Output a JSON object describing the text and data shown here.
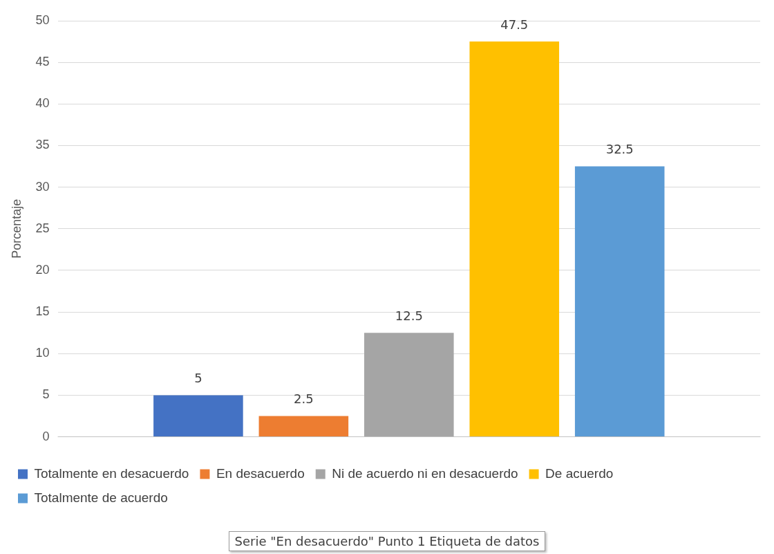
{
  "chart_data": {
    "type": "bar",
    "ylabel": "Porcentaje",
    "categories": [
      null
    ],
    "series": [
      {
        "name": "Totalmente en desacuerdo",
        "color": "#4472c4",
        "values": [
          5
        ]
      },
      {
        "name": "En desacuerdo",
        "color": "#ed7d31",
        "values": [
          2.5
        ]
      },
      {
        "name": "Ni de acuerdo ni en desacuerdo",
        "color": "#a5a5a5",
        "values": [
          12.5
        ]
      },
      {
        "name": "De acuerdo",
        "color": "#ffc000",
        "values": [
          47.5
        ]
      },
      {
        "name": "Totalmente de acuerdo",
        "color": "#5b9bd5",
        "values": [
          32.5
        ]
      }
    ],
    "ylim": [
      0,
      50
    ],
    "yticks": [
      0,
      5,
      10,
      15,
      20,
      25,
      30,
      35,
      40,
      45,
      50
    ],
    "grid": "y",
    "legend": "bottom",
    "data_labels": true,
    "annotations": [
      "Serie \"En desacuerdo\" Punto 1 Etiqueta de datos"
    ]
  }
}
